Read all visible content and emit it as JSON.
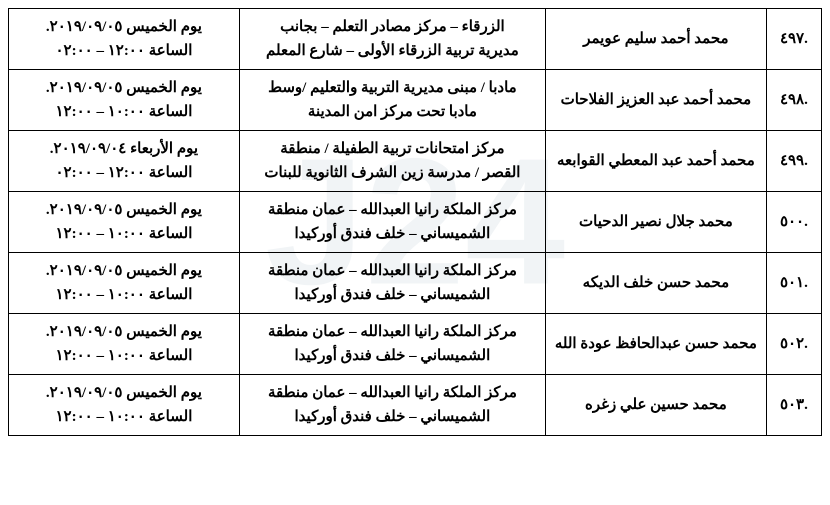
{
  "watermark": "J24",
  "rows": [
    {
      "num": ".٤٩٧",
      "name": "محمد أحمد سليم عويمر",
      "loc1": "الزرقاء – مركز مصادر التعلم – بجانب",
      "loc2": "مديرية تربية الزرقاء الأولى – شارع المعلم",
      "dt1": "يوم الخميس ٢٠١٩/٠٩/٠٥.",
      "dt2": "الساعة ١٢:٠٠ – ٠٢:٠٠"
    },
    {
      "num": ".٤٩٨",
      "name": "محمد أحمد عبد العزيز الفلاحات",
      "loc1": "مادبا / مبنى مديرية التربية والتعليم /وسط",
      "loc2": "مادبا تحت مركز امن المدينة",
      "dt1": "يوم الخميس ٢٠١٩/٠٩/٠٥.",
      "dt2": "الساعة ١٠:٠٠ – ١٢:٠٠"
    },
    {
      "num": ".٤٩٩",
      "name": "محمد أحمد عبد المعطي القوابعه",
      "loc1": "مركز امتحانات تربية الطفيلة / منطقة",
      "loc2": "القصر / مدرسة زين الشرف الثانوية للبنات",
      "dt1": "يوم الأربعاء ٢٠١٩/٠٩/٠٤.",
      "dt2": "الساعة ١٢:٠٠ – ٠٢:٠٠"
    },
    {
      "num": ".٥٠٠",
      "name": "محمد جلال نصير الدحيات",
      "loc1": "مركز الملكة رانيا العبدالله – عمان منطقة",
      "loc2": "الشميساني – خلف فندق أوركيدا",
      "dt1": "يوم الخميس ٢٠١٩/٠٩/٠٥.",
      "dt2": "الساعة ١٠:٠٠ – ١٢:٠٠"
    },
    {
      "num": ".٥٠١",
      "name": "محمد حسن خلف الديكه",
      "loc1": "مركز الملكة رانيا العبدالله – عمان منطقة",
      "loc2": "الشميساني – خلف فندق أوركيدا",
      "dt1": "يوم الخميس ٢٠١٩/٠٩/٠٥.",
      "dt2": "الساعة ١٠:٠٠ – ١٢:٠٠"
    },
    {
      "num": ".٥٠٢",
      "name": "محمد حسن عبدالحافظ عودة الله",
      "loc1": "مركز الملكة رانيا العبدالله – عمان منطقة",
      "loc2": "الشميساني – خلف فندق أوركيدا",
      "dt1": "يوم الخميس ٢٠١٩/٠٩/٠٥.",
      "dt2": "الساعة ١٠:٠٠ – ١٢:٠٠"
    },
    {
      "num": ".٥٠٣",
      "name": "محمد حسين علي زغره",
      "loc1": "مركز الملكة رانيا العبدالله – عمان منطقة",
      "loc2": "الشميساني – خلف فندق أوركيدا",
      "dt1": "يوم الخميس ٢٠١٩/٠٩/٠٥.",
      "dt2": "الساعة ١٠:٠٠ – ١٢:٠٠"
    }
  ]
}
